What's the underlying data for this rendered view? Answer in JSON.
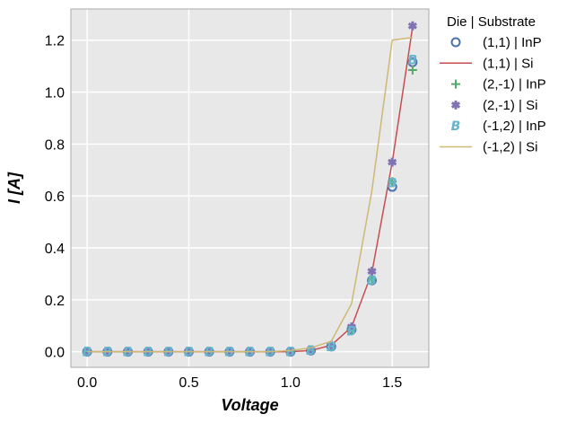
{
  "chart_data": {
    "type": "scatter",
    "xlabel": "Voltage",
    "ylabel": "I [A]",
    "xlim": [
      -0.08,
      1.68
    ],
    "ylim": [
      -0.06,
      1.32
    ],
    "xticks": [
      0.0,
      0.5,
      1.0,
      1.5
    ],
    "xtick_labels": [
      "0.0",
      "0.5",
      "1.0",
      "1.5"
    ],
    "yticks": [
      0.0,
      0.2,
      0.4,
      0.6,
      0.8,
      1.0,
      1.2
    ],
    "ytick_labels": [
      "0.0",
      "0.2",
      "0.4",
      "0.6",
      "0.8",
      "1.0",
      "1.2"
    ],
    "grid": true,
    "background": "#e8e8e8",
    "legend": {
      "title": "Die | Substrate",
      "placement": "outside-right-top"
    },
    "x": [
      0.0,
      0.1,
      0.2,
      0.3,
      0.4,
      0.5,
      0.6,
      0.7,
      0.8,
      0.9,
      1.0,
      1.1,
      1.2,
      1.3,
      1.4,
      1.5,
      1.6
    ],
    "series": [
      {
        "name": "(1,1) | InP",
        "style": "marker",
        "marker": "circle",
        "color": "#4c72b0",
        "values": [
          0.0,
          0.0,
          0.0,
          0.0,
          0.0,
          0.0,
          0.0,
          0.0,
          0.0,
          0.0,
          0.0,
          0.005,
          0.02,
          0.085,
          0.275,
          0.635,
          1.115
        ]
      },
      {
        "name": "(1,1) | Si",
        "style": "line",
        "color": "#c44e52",
        "values": [
          0.0,
          0.0,
          0.0,
          0.0,
          0.0,
          0.0,
          0.0,
          0.0,
          0.0,
          0.0,
          0.0,
          0.005,
          0.025,
          0.095,
          0.305,
          0.73,
          1.25
        ]
      },
      {
        "name": "(2,-1) | InP",
        "style": "marker",
        "marker": "plus",
        "color": "#55a868",
        "values": [
          0.0,
          0.0,
          0.0,
          0.0,
          0.0,
          0.0,
          0.0,
          0.0,
          0.0,
          0.0,
          0.0,
          0.005,
          0.02,
          0.085,
          0.28,
          0.655,
          1.085
        ]
      },
      {
        "name": "(2,-1) | Si",
        "style": "marker",
        "marker": "star",
        "color": "#8172b2",
        "values": [
          0.0,
          0.0,
          0.0,
          0.0,
          0.0,
          0.0,
          0.0,
          0.0,
          0.0,
          0.0,
          0.0,
          0.005,
          0.025,
          0.095,
          0.31,
          0.73,
          1.255
        ]
      },
      {
        "name": "(-1,2) | InP",
        "style": "marker",
        "marker": "letter-b",
        "color": "#64b5cd",
        "values": [
          0.0,
          0.0,
          0.0,
          0.0,
          0.0,
          0.0,
          0.0,
          0.0,
          0.0,
          0.0,
          0.0,
          0.005,
          0.02,
          0.08,
          0.275,
          0.65,
          1.125
        ]
      },
      {
        "name": "(-1,2) | Si",
        "style": "line",
        "color": "#ccb974",
        "values": [
          0.0,
          0.0,
          0.0,
          0.0,
          0.0,
          0.0,
          0.0,
          0.0,
          0.0,
          0.0,
          0.005,
          0.015,
          0.04,
          0.185,
          0.62,
          1.2,
          1.21
        ]
      }
    ]
  }
}
